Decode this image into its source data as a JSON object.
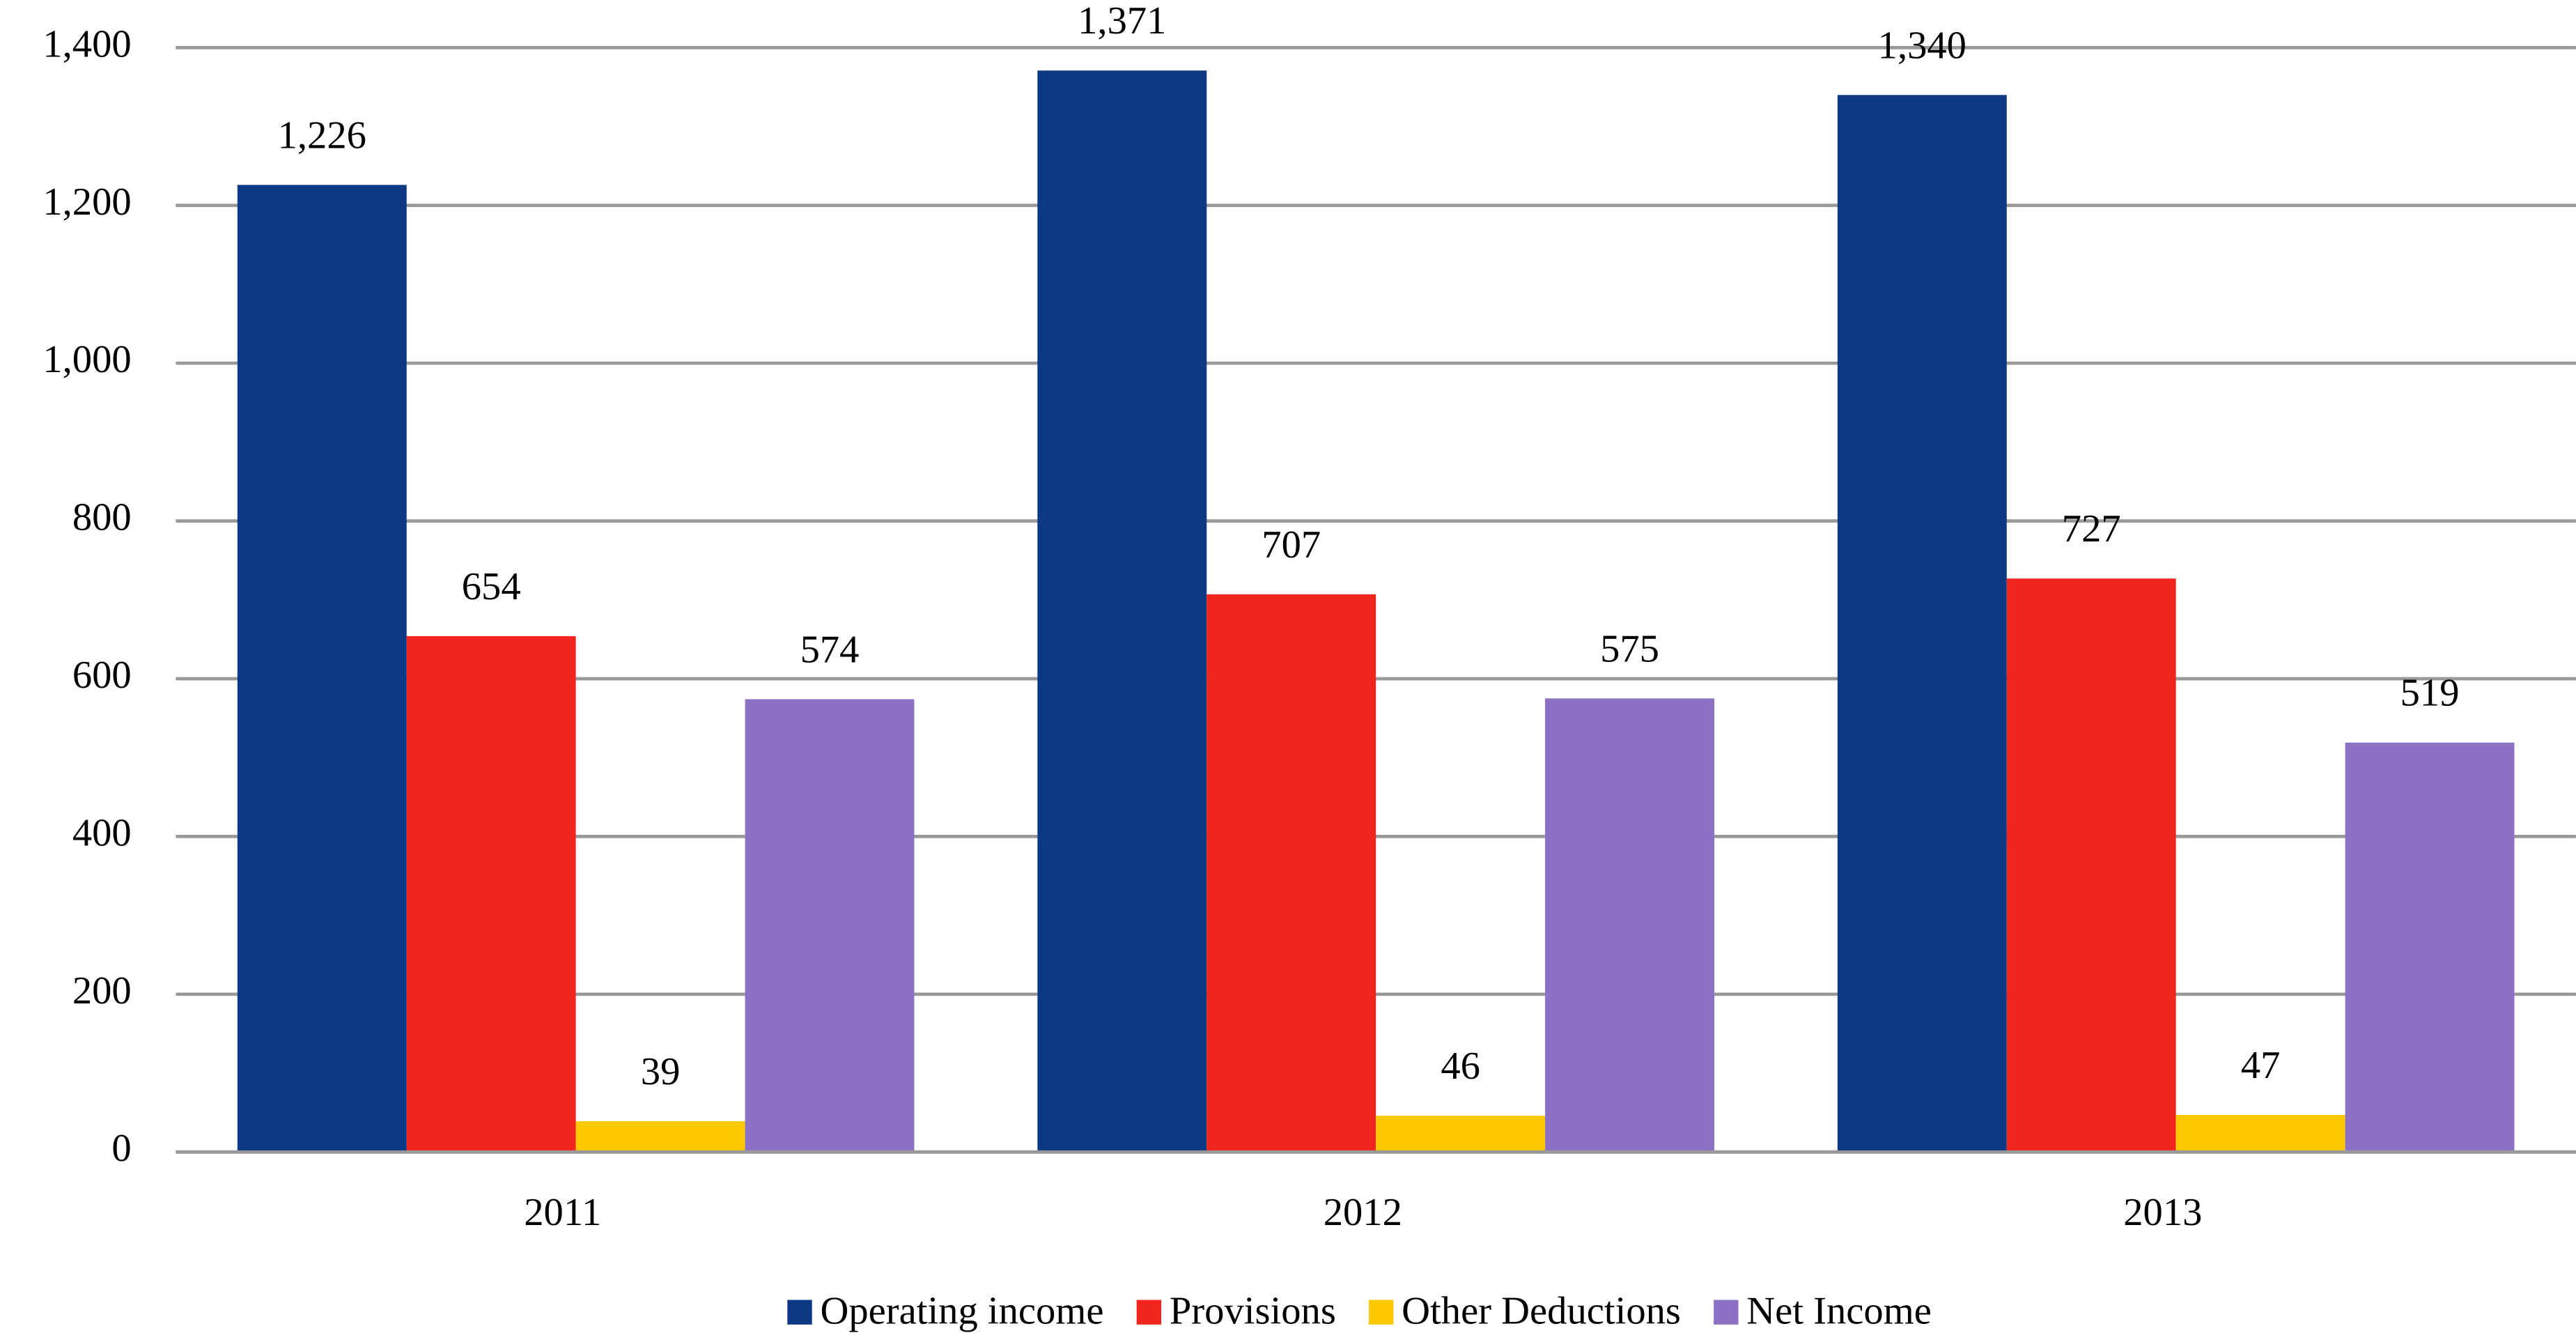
{
  "chart_data": {
    "type": "bar",
    "categories": [
      "2011",
      "2012",
      "2013"
    ],
    "series": [
      {
        "name": "Operating income",
        "color": "#0c3884",
        "values": [
          1226,
          1371,
          1340
        ],
        "value_labels": [
          "1,226",
          "1,371",
          "1,340"
        ]
      },
      {
        "name": "Provisions",
        "color": "#f2251e",
        "values": [
          654,
          707,
          727
        ]
      },
      {
        "name": "Other Deductions",
        "color": "#fcc800",
        "values": [
          39,
          46,
          47
        ]
      },
      {
        "name": "Net Income",
        "color": "#8b70c4",
        "values": [
          574,
          575,
          519
        ]
      }
    ],
    "ylim": [
      0,
      1400
    ],
    "yticks": [
      0,
      200,
      400,
      600,
      800,
      {
        "value": 1000,
        "label": "1,000"
      },
      {
        "value": 1200,
        "label": "1,200"
      },
      {
        "value": 1400,
        "label": "1,400"
      }
    ],
    "grid": true,
    "legend": "bottom"
  }
}
